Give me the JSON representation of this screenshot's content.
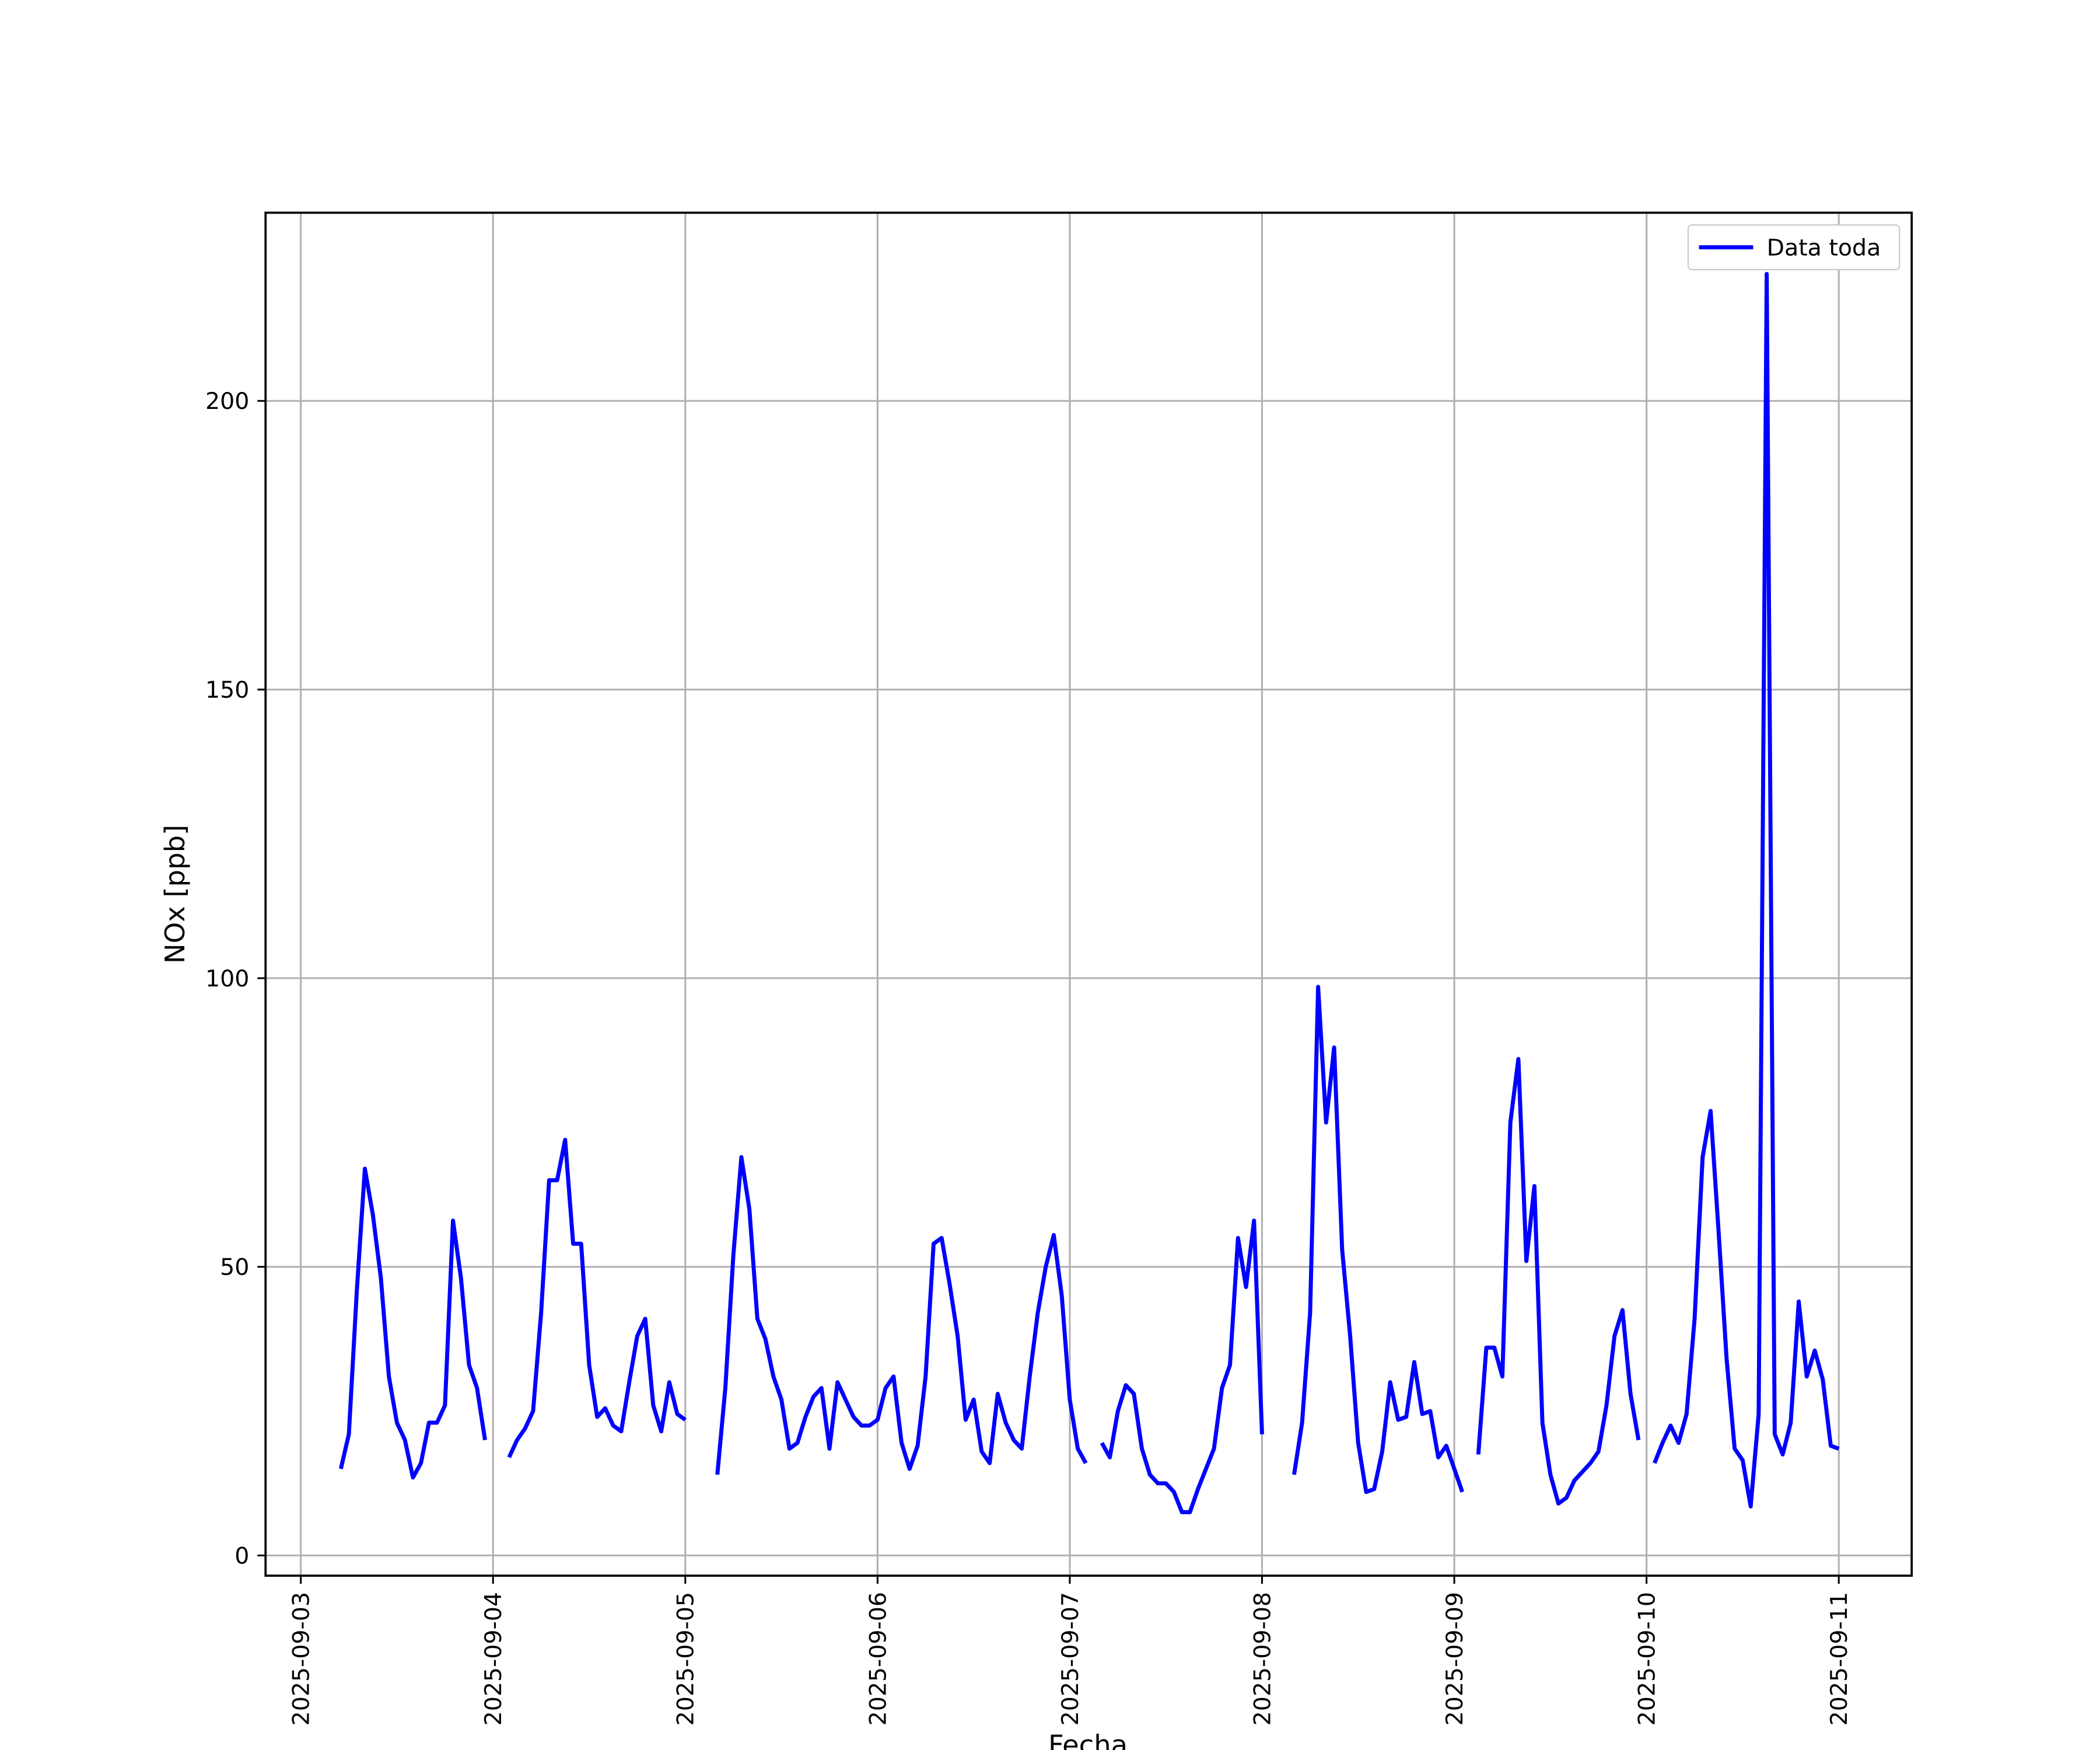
{
  "chart_data": {
    "type": "line",
    "xlabel": "Fecha",
    "ylabel": "NOx [ppb]",
    "x": [
      "2025-09-03T05:00",
      "2025-09-03T06:00",
      "2025-09-03T07:00",
      "2025-09-03T08:00",
      "2025-09-03T09:00",
      "2025-09-03T10:00",
      "2025-09-03T11:00",
      "2025-09-03T12:00",
      "2025-09-03T13:00",
      "2025-09-03T14:00",
      "2025-09-03T15:00",
      "2025-09-03T16:00",
      "2025-09-03T17:00",
      "2025-09-03T18:00",
      "2025-09-03T19:00",
      "2025-09-03T20:00",
      "2025-09-03T21:00",
      "2025-09-03T22:00",
      "2025-09-03T23:00",
      "2025-09-04T00:00",
      "2025-09-04T02:00",
      "2025-09-04T03:00",
      "2025-09-04T04:00",
      "2025-09-04T05:00",
      "2025-09-04T06:00",
      "2025-09-04T07:00",
      "2025-09-04T08:00",
      "2025-09-04T09:00",
      "2025-09-04T10:00",
      "2025-09-04T11:00",
      "2025-09-04T12:00",
      "2025-09-04T13:00",
      "2025-09-04T14:00",
      "2025-09-04T15:00",
      "2025-09-04T16:00",
      "2025-09-04T17:00",
      "2025-09-04T18:00",
      "2025-09-04T19:00",
      "2025-09-04T20:00",
      "2025-09-04T21:00",
      "2025-09-04T22:00",
      "2025-09-04T23:00",
      "2025-09-05T00:00",
      "2025-09-05T02:00",
      "2025-09-05T04:00",
      "2025-09-05T05:00",
      "2025-09-05T06:00",
      "2025-09-05T07:00",
      "2025-09-05T08:00",
      "2025-09-05T09:00",
      "2025-09-05T10:00",
      "2025-09-05T11:00",
      "2025-09-05T12:00",
      "2025-09-05T13:00",
      "2025-09-05T14:00",
      "2025-09-05T15:00",
      "2025-09-05T16:00",
      "2025-09-05T17:00",
      "2025-09-05T18:00",
      "2025-09-05T19:00",
      "2025-09-05T20:00",
      "2025-09-05T21:00",
      "2025-09-05T22:00",
      "2025-09-05T23:00",
      "2025-09-06T00:00",
      "2025-09-06T01:00",
      "2025-09-06T02:00",
      "2025-09-06T03:00",
      "2025-09-06T04:00",
      "2025-09-06T05:00",
      "2025-09-06T06:00",
      "2025-09-06T07:00",
      "2025-09-06T08:00",
      "2025-09-06T09:00",
      "2025-09-06T10:00",
      "2025-09-06T11:00",
      "2025-09-06T12:00",
      "2025-09-06T13:00",
      "2025-09-06T14:00",
      "2025-09-06T15:00",
      "2025-09-06T16:00",
      "2025-09-06T17:00",
      "2025-09-06T18:00",
      "2025-09-06T19:00",
      "2025-09-06T20:00",
      "2025-09-06T21:00",
      "2025-09-06T22:00",
      "2025-09-06T23:00",
      "2025-09-07T00:00",
      "2025-09-07T01:00",
      "2025-09-07T02:00",
      "2025-09-07T03:00",
      "2025-09-07T04:00",
      "2025-09-07T05:00",
      "2025-09-07T06:00",
      "2025-09-07T07:00",
      "2025-09-07T08:00",
      "2025-09-07T09:00",
      "2025-09-07T10:00",
      "2025-09-07T11:00",
      "2025-09-07T12:00",
      "2025-09-07T13:00",
      "2025-09-07T14:00",
      "2025-09-07T15:00",
      "2025-09-07T16:00",
      "2025-09-07T17:00",
      "2025-09-07T18:00",
      "2025-09-07T19:00",
      "2025-09-07T20:00",
      "2025-09-07T21:00",
      "2025-09-07T22:00",
      "2025-09-07T23:00",
      "2025-09-08T00:00",
      "2025-09-08T02:00",
      "2025-09-08T04:00",
      "2025-09-08T05:00",
      "2025-09-08T06:00",
      "2025-09-08T07:00",
      "2025-09-08T08:00",
      "2025-09-08T09:00",
      "2025-09-08T10:00",
      "2025-09-08T11:00",
      "2025-09-08T12:00",
      "2025-09-08T13:00",
      "2025-09-08T14:00",
      "2025-09-08T15:00",
      "2025-09-08T16:00",
      "2025-09-08T17:00",
      "2025-09-08T18:00",
      "2025-09-08T19:00",
      "2025-09-08T20:00",
      "2025-09-08T21:00",
      "2025-09-08T22:00",
      "2025-09-08T23:00",
      "2025-09-09T00:00",
      "2025-09-09T01:00",
      "2025-09-09T02:00",
      "2025-09-09T03:00",
      "2025-09-09T04:00",
      "2025-09-09T05:00",
      "2025-09-09T06:00",
      "2025-09-09T07:00",
      "2025-09-09T08:00",
      "2025-09-09T09:00",
      "2025-09-09T10:00",
      "2025-09-09T11:00",
      "2025-09-09T12:00",
      "2025-09-09T13:00",
      "2025-09-09T14:00",
      "2025-09-09T15:00",
      "2025-09-09T16:00",
      "2025-09-09T17:00",
      "2025-09-09T18:00",
      "2025-09-09T19:00",
      "2025-09-09T20:00",
      "2025-09-09T21:00",
      "2025-09-09T22:00",
      "2025-09-09T23:00",
      "2025-09-10T00:00",
      "2025-09-10T01:00",
      "2025-09-10T02:00",
      "2025-09-10T03:00",
      "2025-09-10T04:00",
      "2025-09-10T05:00",
      "2025-09-10T06:00",
      "2025-09-10T07:00",
      "2025-09-10T08:00",
      "2025-09-10T09:00",
      "2025-09-10T10:00",
      "2025-09-10T11:00",
      "2025-09-10T12:00",
      "2025-09-10T13:00",
      "2025-09-10T14:00",
      "2025-09-10T15:00",
      "2025-09-10T16:00",
      "2025-09-10T17:00",
      "2025-09-10T18:00",
      "2025-09-10T19:00",
      "2025-09-10T20:00",
      "2025-09-10T21:00",
      "2025-09-10T22:00",
      "2025-09-10T23:00",
      "2025-09-11T00:00"
    ],
    "series": [
      {
        "name": "Data toda",
        "color": "#0000ff",
        "values": [
          15,
          21,
          46,
          67,
          59,
          48,
          31,
          23,
          20,
          13.5,
          16,
          23,
          23,
          26,
          58,
          48,
          33,
          29,
          20,
          null,
          17,
          20,
          22,
          25,
          42,
          65,
          65,
          72,
          54,
          54,
          33,
          24,
          25.5,
          22.5,
          21.5,
          30,
          38,
          41,
          26,
          21.5,
          30,
          24.5,
          23.5,
          null,
          14,
          29,
          52,
          69,
          60,
          41,
          37.5,
          31,
          27,
          18.5,
          19.5,
          24,
          27.5,
          29,
          18.5,
          30,
          27,
          24,
          22.5,
          22.5,
          23.5,
          29,
          31,
          19.5,
          15,
          19,
          31,
          54,
          55,
          47,
          38,
          23.5,
          27,
          18,
          16,
          28,
          23,
          20,
          18.5,
          31,
          42,
          50,
          55.5,
          45,
          27,
          18.5,
          16,
          null,
          19.5,
          17,
          25,
          29.5,
          28,
          18.5,
          14,
          12.5,
          12.5,
          11,
          7.5,
          7.5,
          11.5,
          15,
          18.5,
          29,
          33,
          55,
          46.5,
          58,
          21,
          null,
          14,
          23,
          42,
          98.5,
          75,
          88,
          53,
          38,
          19.5,
          11,
          11.5,
          18,
          30,
          23.5,
          24,
          33.5,
          24.5,
          25,
          17,
          19,
          15,
          11,
          null,
          17.5,
          36,
          36,
          31,
          75,
          86,
          51,
          64,
          23,
          14,
          9,
          10,
          13,
          14.5,
          16,
          18,
          26,
          38,
          42.5,
          28,
          20,
          null,
          16,
          19.5,
          22.5,
          19.5,
          24.5,
          41,
          69,
          77,
          56,
          34,
          18.5,
          16.5,
          8.5,
          24.5,
          222,
          21,
          17.5,
          23,
          44,
          31,
          35.5,
          30.5,
          19,
          18.5
        ]
      }
    ],
    "xlim": [
      "2025-09-02T19:36",
      "2025-09-11T09:06"
    ],
    "xticks": [
      "2025-09-03",
      "2025-09-04",
      "2025-09-05",
      "2025-09-06",
      "2025-09-07",
      "2025-09-08",
      "2025-09-09",
      "2025-09-10",
      "2025-09-11"
    ],
    "ylim": [
      -3.5,
      232.6
    ],
    "yticks": [
      0,
      50,
      100,
      150,
      200
    ],
    "grid": true,
    "legend": "upper right"
  }
}
